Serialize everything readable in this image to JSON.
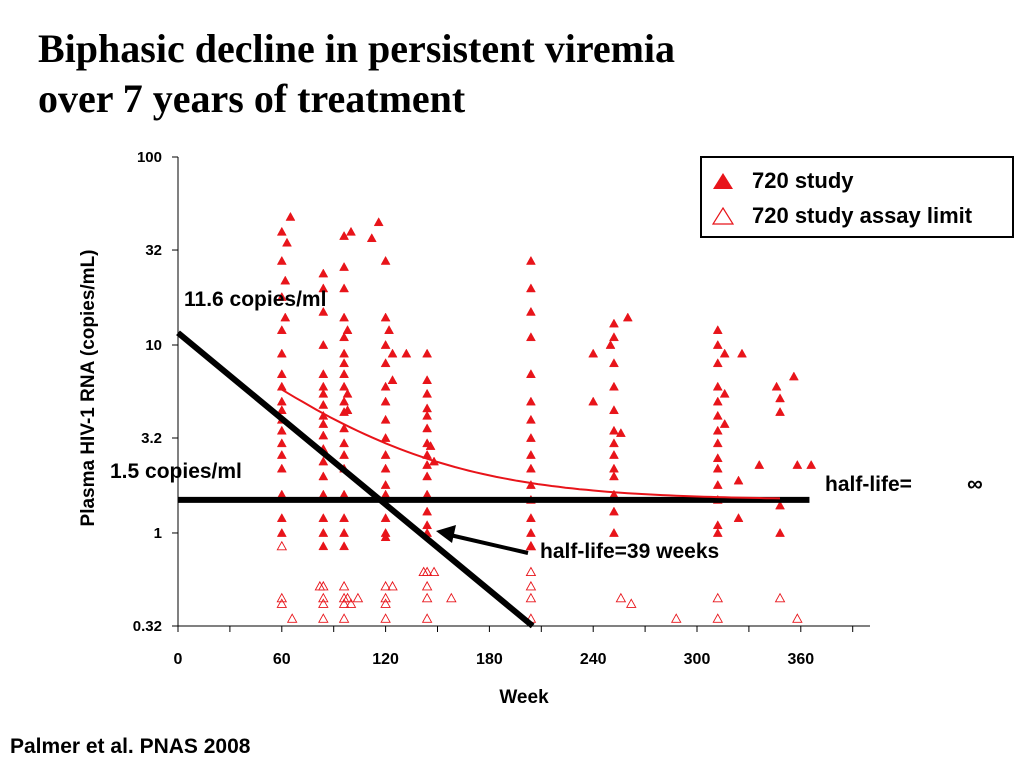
{
  "title": {
    "line1": "Biphasic decline in persistent viremia",
    "line2": "over 7 years of treatment"
  },
  "citation": "Palmer et al. PNAS 2008",
  "colors": {
    "series_red": "#e8141a",
    "fit_line": "#e8141a",
    "black": "#000000"
  },
  "chart_data": {
    "type": "scatter",
    "xlabel": "Week",
    "ylabel": "Plasma HIV-1 RNA (copies/mL)",
    "x_ticks": [
      0,
      60,
      120,
      180,
      240,
      300,
      360
    ],
    "y_ticks": [
      {
        "value": 0.32,
        "label": "0.32"
      },
      {
        "value": 1,
        "label": "1"
      },
      {
        "value": 3.2,
        "label": "3.2"
      },
      {
        "value": 10,
        "label": "10"
      },
      {
        "value": 32,
        "label": "32"
      },
      {
        "value": 100,
        "label": "100"
      }
    ],
    "xlim": [
      0,
      400
    ],
    "ylim": [
      0.32,
      100
    ],
    "y_scale": "log",
    "grid": false,
    "legend_position": "top-right",
    "legend": [
      {
        "name": "720 study",
        "marker": "filled-triangle"
      },
      {
        "name": "720 study assay limit",
        "marker": "open-triangle"
      }
    ],
    "series": [
      {
        "name": "720 study",
        "marker": "filled-triangle",
        "points": [
          [
            60,
            40
          ],
          [
            60,
            28
          ],
          [
            60,
            18
          ],
          [
            60,
            12
          ],
          [
            60,
            9
          ],
          [
            60,
            7
          ],
          [
            60,
            6
          ],
          [
            60,
            5
          ],
          [
            60,
            4.5
          ],
          [
            60,
            4
          ],
          [
            60,
            3.5
          ],
          [
            60,
            3
          ],
          [
            60,
            2.6
          ],
          [
            60,
            2.2
          ],
          [
            60,
            1.6
          ],
          [
            60,
            1.2
          ],
          [
            60,
            1
          ],
          [
            65,
            48
          ],
          [
            63,
            35
          ],
          [
            62,
            22
          ],
          [
            62,
            14
          ],
          [
            84,
            24
          ],
          [
            84,
            20
          ],
          [
            84,
            15
          ],
          [
            84,
            10
          ],
          [
            84,
            7
          ],
          [
            84,
            6
          ],
          [
            84,
            5.5
          ],
          [
            84,
            4.8
          ],
          [
            84,
            4.2
          ],
          [
            84,
            3.8
          ],
          [
            84,
            3.3
          ],
          [
            84,
            2.8
          ],
          [
            84,
            2.4
          ],
          [
            84,
            2
          ],
          [
            84,
            1.6
          ],
          [
            84,
            1.2
          ],
          [
            84,
            1
          ],
          [
            84,
            0.85
          ],
          [
            96,
            38
          ],
          [
            96,
            26
          ],
          [
            96,
            20
          ],
          [
            96,
            14
          ],
          [
            96,
            11
          ],
          [
            96,
            9
          ],
          [
            96,
            8
          ],
          [
            96,
            7
          ],
          [
            96,
            6
          ],
          [
            96,
            5
          ],
          [
            96,
            4.4
          ],
          [
            96,
            3.6
          ],
          [
            96,
            3
          ],
          [
            96,
            2.6
          ],
          [
            96,
            2.2
          ],
          [
            96,
            1.6
          ],
          [
            96,
            1.2
          ],
          [
            96,
            1
          ],
          [
            96,
            0.85
          ],
          [
            100,
            40
          ],
          [
            98,
            12
          ],
          [
            98,
            5.5
          ],
          [
            98,
            4.5
          ],
          [
            112,
            37
          ],
          [
            116,
            45
          ],
          [
            120,
            28
          ],
          [
            120,
            14
          ],
          [
            120,
            10
          ],
          [
            120,
            8
          ],
          [
            120,
            6
          ],
          [
            120,
            5
          ],
          [
            120,
            4
          ],
          [
            120,
            3.2
          ],
          [
            120,
            2.6
          ],
          [
            120,
            2.2
          ],
          [
            120,
            1.8
          ],
          [
            120,
            1.6
          ],
          [
            120,
            1.2
          ],
          [
            120,
            1
          ],
          [
            120,
            0.95
          ],
          [
            122,
            12
          ],
          [
            124,
            9
          ],
          [
            124,
            6.5
          ],
          [
            132,
            9
          ],
          [
            144,
            9
          ],
          [
            144,
            6.5
          ],
          [
            144,
            5.5
          ],
          [
            144,
            4.6
          ],
          [
            144,
            4.2
          ],
          [
            144,
            3.6
          ],
          [
            144,
            3
          ],
          [
            144,
            2.6
          ],
          [
            144,
            2.3
          ],
          [
            144,
            2
          ],
          [
            144,
            1.6
          ],
          [
            144,
            1.3
          ],
          [
            144,
            1.1
          ],
          [
            144,
            1
          ],
          [
            146,
            2.9
          ],
          [
            148,
            2.4
          ],
          [
            204,
            28
          ],
          [
            204,
            20
          ],
          [
            204,
            15
          ],
          [
            204,
            11
          ],
          [
            204,
            7
          ],
          [
            204,
            5
          ],
          [
            204,
            4
          ],
          [
            204,
            3.2
          ],
          [
            204,
            2.6
          ],
          [
            204,
            2.2
          ],
          [
            204,
            1.8
          ],
          [
            204,
            1.5
          ],
          [
            204,
            1.2
          ],
          [
            204,
            1
          ],
          [
            204,
            0.85
          ],
          [
            240,
            9
          ],
          [
            240,
            5
          ],
          [
            250,
            10
          ],
          [
            252,
            13
          ],
          [
            252,
            11
          ],
          [
            252,
            8
          ],
          [
            252,
            6
          ],
          [
            252,
            4.5
          ],
          [
            252,
            3.5
          ],
          [
            252,
            3
          ],
          [
            252,
            2.6
          ],
          [
            252,
            2.2
          ],
          [
            252,
            2
          ],
          [
            252,
            1.6
          ],
          [
            252,
            1.3
          ],
          [
            252,
            1
          ],
          [
            256,
            3.4
          ],
          [
            260,
            14
          ],
          [
            312,
            12
          ],
          [
            312,
            10
          ],
          [
            312,
            8
          ],
          [
            312,
            6
          ],
          [
            312,
            5
          ],
          [
            312,
            4.2
          ],
          [
            312,
            3.5
          ],
          [
            312,
            3
          ],
          [
            312,
            2.5
          ],
          [
            312,
            2.2
          ],
          [
            312,
            1.8
          ],
          [
            312,
            1.5
          ],
          [
            312,
            1.1
          ],
          [
            312,
            1
          ],
          [
            316,
            9
          ],
          [
            316,
            5.5
          ],
          [
            316,
            3.8
          ],
          [
            324,
            1.9
          ],
          [
            324,
            1.2
          ],
          [
            326,
            9
          ],
          [
            336,
            2.3
          ],
          [
            346,
            6
          ],
          [
            348,
            5.2
          ],
          [
            348,
            4.4
          ],
          [
            348,
            1.4
          ],
          [
            348,
            1
          ],
          [
            356,
            6.8
          ],
          [
            358,
            2.3
          ],
          [
            366,
            2.3
          ]
        ]
      },
      {
        "name": "720 study assay limit",
        "marker": "open-triangle",
        "points": [
          [
            60,
            0.85
          ],
          [
            60,
            0.45
          ],
          [
            60,
            0.42
          ],
          [
            66,
            0.35
          ],
          [
            84,
            0.52
          ],
          [
            84,
            0.45
          ],
          [
            84,
            0.42
          ],
          [
            84,
            0.35
          ],
          [
            82,
            0.52
          ],
          [
            96,
            0.52
          ],
          [
            96,
            0.45
          ],
          [
            96,
            0.42
          ],
          [
            96,
            0.35
          ],
          [
            98,
            0.45
          ],
          [
            100,
            0.42
          ],
          [
            104,
            0.45
          ],
          [
            120,
            0.52
          ],
          [
            120,
            0.45
          ],
          [
            120,
            0.42
          ],
          [
            120,
            0.35
          ],
          [
            124,
            0.52
          ],
          [
            144,
            0.62
          ],
          [
            144,
            0.52
          ],
          [
            144,
            0.45
          ],
          [
            144,
            0.35
          ],
          [
            142,
            0.62
          ],
          [
            148,
            0.62
          ],
          [
            158,
            0.45
          ],
          [
            204,
            0.85
          ],
          [
            204,
            0.62
          ],
          [
            204,
            0.52
          ],
          [
            204,
            0.45
          ],
          [
            204,
            0.35
          ],
          [
            256,
            0.45
          ],
          [
            262,
            0.42
          ],
          [
            288,
            0.35
          ],
          [
            312,
            0.45
          ],
          [
            312,
            0.35
          ],
          [
            348,
            0.45
          ],
          [
            358,
            0.35
          ]
        ]
      }
    ],
    "fit_curves": [
      {
        "kind": "steep-decline",
        "x": [
          0,
          205
        ],
        "y": [
          11.6,
          0.32
        ]
      },
      {
        "kind": "plateau",
        "x": [
          0,
          365
        ],
        "y": [
          1.5,
          1.5
        ]
      },
      {
        "kind": "exp-decay",
        "x0": 60,
        "y0": 5.8,
        "plateau": 1.5,
        "tau_weeks": 57
      }
    ],
    "annotations": [
      {
        "text": "11.6 copies/ml"
      },
      {
        "text": "1.5 copies/ml"
      },
      {
        "text": "half-life=39 weeks"
      },
      {
        "text": "half-life="
      },
      {
        "text": "∞"
      }
    ]
  }
}
